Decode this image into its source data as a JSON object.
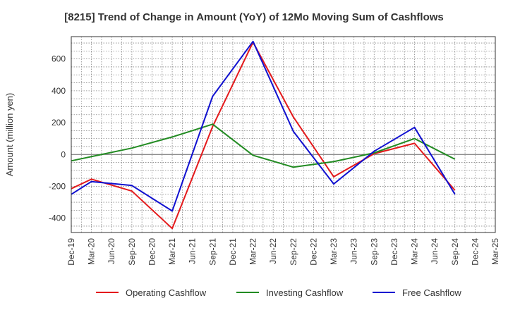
{
  "chart_data": {
    "type": "line",
    "title": "[8215]  Trend of Change in Amount (YoY) of 12Mo Moving Sum of Cashflows",
    "xlabel": "",
    "ylabel": "Amount (million yen)",
    "ylim": [
      -490,
      740
    ],
    "yticks": [
      -400,
      -200,
      0,
      200,
      400,
      600
    ],
    "grid": true,
    "legend_position": "bottom",
    "categories": [
      "Dec-19",
      "Mar-20",
      "Jun-20",
      "Sep-20",
      "Dec-20",
      "Mar-21",
      "Jun-21",
      "Sep-21",
      "Dec-21",
      "Mar-22",
      "Jun-22",
      "Sep-22",
      "Dec-22",
      "Mar-23",
      "Jun-23",
      "Sep-23",
      "Dec-23",
      "Mar-24",
      "Jun-24",
      "Sep-24",
      "Dec-24",
      "Mar-25"
    ],
    "series": [
      {
        "name": "Operating Cashflow",
        "color": "#e41a1c",
        "values": [
          -215,
          -155,
          null,
          -230,
          null,
          -465,
          null,
          175,
          null,
          705,
          null,
          235,
          null,
          -140,
          null,
          5,
          null,
          70,
          null,
          -225,
          null,
          null
        ]
      },
      {
        "name": "Investing Cashflow",
        "color": "#228b22",
        "values": [
          -40,
          null,
          null,
          40,
          null,
          110,
          null,
          190,
          null,
          -5,
          null,
          -80,
          null,
          -45,
          null,
          10,
          null,
          100,
          null,
          -30,
          null,
          null
        ]
      },
      {
        "name": "Free Cashflow",
        "color": "#1010d0",
        "values": [
          -250,
          -170,
          null,
          -195,
          null,
          -355,
          null,
          365,
          null,
          710,
          null,
          145,
          null,
          -185,
          null,
          20,
          null,
          170,
          null,
          -250,
          null,
          null
        ]
      }
    ]
  }
}
